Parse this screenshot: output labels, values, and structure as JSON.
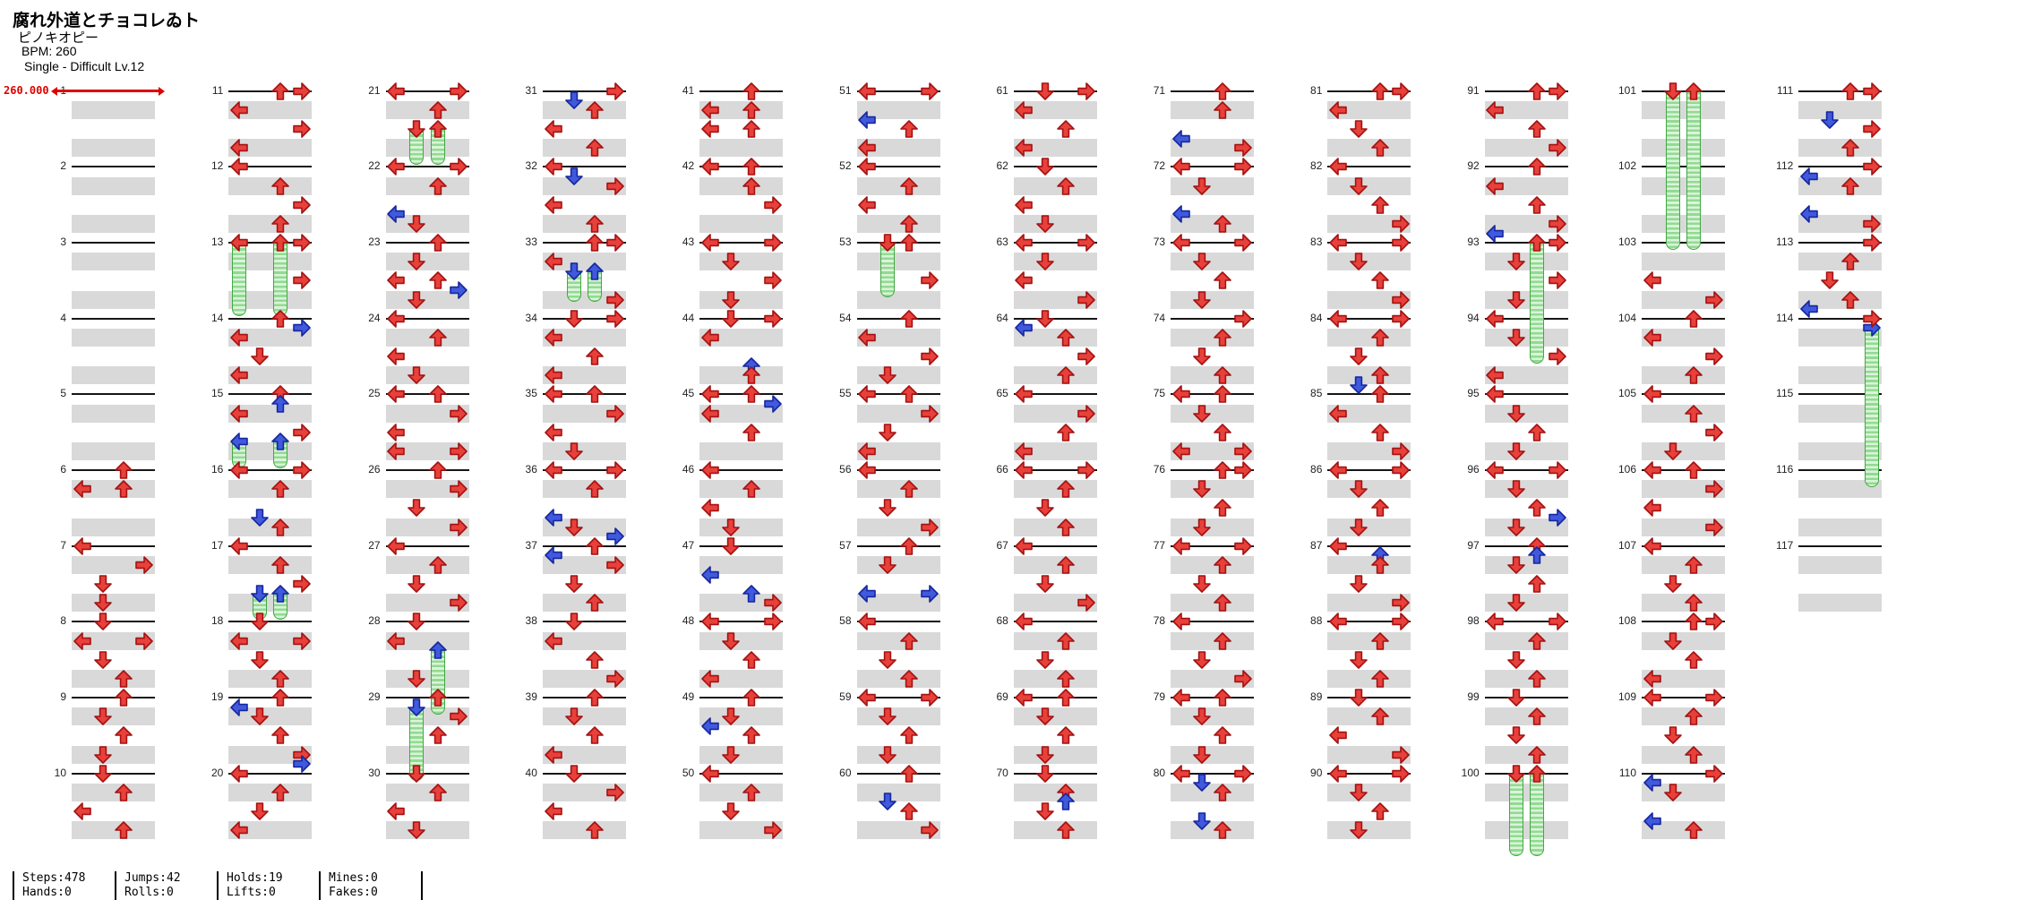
{
  "header": {
    "title": "腐れ外道とチョコレゐト",
    "artist": "ピノキオピー",
    "bpm": "BPM: 260",
    "difficulty": "Single - Difficult  Lv.12"
  },
  "tempo_marker": {
    "value": "260.000",
    "color": "#e00000"
  },
  "stats": {
    "pairs": [
      [
        "Steps:478",
        "Hands:0"
      ],
      [
        "Jumps:42",
        "Rolls:0"
      ],
      [
        "Holds:19",
        "Lifts:0"
      ],
      [
        "Mines:0",
        "Fakes:0"
      ]
    ]
  },
  "chart_meta": {
    "lanes": [
      "left",
      "down",
      "up",
      "right"
    ],
    "measures_per_column": 10,
    "columns": 12,
    "total_measures": 117,
    "note_colors": {
      "quarter": "#e8403a",
      "quarter_stroke": "#a31212",
      "eighth": "#4059dd",
      "eighth_stroke": "#16279d",
      "hold": "#92da92"
    }
  },
  "measures": [
    {
      "n": 1,
      "s": "",
      "h": []
    },
    {
      "n": 2,
      "s": "",
      "h": []
    },
    {
      "n": 3,
      "s": "",
      "h": []
    },
    {
      "n": 4,
      "s": "",
      "h": []
    },
    {
      "n": 5,
      "s": "",
      "h": []
    },
    {
      "n": 6,
      "s": "0U 1L 1U",
      "h": []
    },
    {
      "n": 7,
      "s": "0L 1R 2D 3D",
      "h": []
    },
    {
      "n": 8,
      "s": "0D 1L 1R 2D 3U",
      "h": []
    },
    {
      "n": 9,
      "s": "0U 1D 2U 3D",
      "h": []
    },
    {
      "n": 10,
      "s": "0D 1U 2L 3U",
      "h": []
    },
    {
      "n": 11,
      "s": "0U 0R 1L 2R 3L",
      "h": []
    },
    {
      "n": 12,
      "s": "0L 1U 2R 3U",
      "h": []
    },
    {
      "n": 13,
      "s": "0R 2R",
      "h": [
        [
          0,
          0,
          3.5
        ],
        [
          0,
          2,
          3.5
        ]
      ]
    },
    {
      "n": 14,
      "s": "0U 0.5r 1L 2D 3L",
      "h": []
    },
    {
      "n": 15,
      "s": "0U 0.5u 1L 2R",
      "h": [
        [
          2.5,
          0,
          1
        ],
        [
          2.5,
          2,
          1
        ]
      ]
    },
    {
      "n": 16,
      "s": "0L 0R 1U 2.5d 3U",
      "h": []
    },
    {
      "n": 17,
      "s": "0L 1U 2R",
      "h": [
        [
          2.5,
          1,
          1
        ],
        [
          2.5,
          2,
          1
        ]
      ]
    },
    {
      "n": 18,
      "s": "0D 1L 1R 2D 3U",
      "h": []
    },
    {
      "n": 19,
      "s": "0U 0.5l 1D 2U 3R 3.5r",
      "h": []
    },
    {
      "n": 20,
      "s": "0L 1U 2D 3L",
      "h": []
    },
    {
      "n": 21,
      "s": "0L 0R 1U",
      "h": [
        [
          2,
          1,
          1.5
        ],
        [
          2,
          2,
          1.5
        ]
      ]
    },
    {
      "n": 22,
      "s": "0L 0R 1U 2.5l 3D",
      "h": []
    },
    {
      "n": 23,
      "s": "0U 1D 2L 2U 2.5r 3D",
      "h": []
    },
    {
      "n": 24,
      "s": "0L 1U 2L 3D",
      "h": []
    },
    {
      "n": 25,
      "s": "0L 0U 1R 2L 3L 3R",
      "h": []
    },
    {
      "n": 26,
      "s": "0U 1R 2D 3R",
      "h": []
    },
    {
      "n": 27,
      "s": "0L 1U 2D 3R",
      "h": []
    },
    {
      "n": 28,
      "s": "0D 1L 3D",
      "h": [
        [
          1.5,
          2,
          3
        ]
      ]
    },
    {
      "n": 29,
      "s": "0U 1R 2U",
      "h": [
        [
          0.5,
          1,
          3.5
        ]
      ]
    },
    {
      "n": 30,
      "s": "0D 1U 2L 3D",
      "h": []
    },
    {
      "n": 31,
      "s": "0R 0.5d 1U 2L 3U",
      "h": []
    },
    {
      "n": 32,
      "s": "0L 0.5d 1R 2L 3U",
      "h": []
    },
    {
      "n": 33,
      "s": "0U 0R 1L 3R",
      "h": [
        [
          1.5,
          1,
          1.25
        ],
        [
          1.5,
          2,
          1.25
        ]
      ]
    },
    {
      "n": 34,
      "s": "0D 0R 1L 2U 3L",
      "h": []
    },
    {
      "n": 35,
      "s": "0L 0U 1R 2L 3D",
      "h": []
    },
    {
      "n": 36,
      "s": "0L 0R 1U 2.5l 3D 3.5r",
      "h": []
    },
    {
      "n": 37,
      "s": "0U 0.5l 1R 2D 3U",
      "h": []
    },
    {
      "n": 38,
      "s": "0D 1L 2U 3R",
      "h": []
    },
    {
      "n": 39,
      "s": "0U 1D 2U 3L",
      "h": []
    },
    {
      "n": 40,
      "s": "0D 1R 2L 3U",
      "h": []
    },
    {
      "n": 41,
      "s": "0U 1L 1U 2L 2U",
      "h": []
    },
    {
      "n": 42,
      "s": "0L 0U 1U 2R",
      "h": []
    },
    {
      "n": 43,
      "s": "0L 0R 1D 2R 3D",
      "h": []
    },
    {
      "n": 44,
      "s": "0D 0R 1L 2.5u 3U",
      "h": []
    },
    {
      "n": 45,
      "s": "0L 0U 0.5r 1L 2U",
      "h": []
    },
    {
      "n": 46,
      "s": "0L 1U 2L 3D",
      "h": []
    },
    {
      "n": 47,
      "s": "0D 1.5l 2.5u 3R",
      "h": []
    },
    {
      "n": 48,
      "s": "0L 0R 1D 2U 3L",
      "h": []
    },
    {
      "n": 49,
      "s": "0U 1D 1.5l 2U 3D",
      "h": []
    },
    {
      "n": 50,
      "s": "0L 1U 2D 3R",
      "h": []
    },
    {
      "n": 51,
      "s": "0L 0R 1.5l 2U 3L",
      "h": []
    },
    {
      "n": 52,
      "s": "0L 1U 2L 3U",
      "h": []
    },
    {
      "n": 53,
      "s": "0U 2R",
      "h": [
        [
          0,
          1,
          2.5
        ]
      ]
    },
    {
      "n": 54,
      "s": "0U 1L 2R 3D",
      "h": []
    },
    {
      "n": 55,
      "s": "0L 0U 1R 2D 3L",
      "h": []
    },
    {
      "n": 56,
      "s": "0L 1U 2D 3R",
      "h": []
    },
    {
      "n": 57,
      "s": "0U 1D 2.5l 2.5r",
      "h": []
    },
    {
      "n": 58,
      "s": "0L 1U 2D 3U",
      "h": []
    },
    {
      "n": 59,
      "s": "0L 0R 1D 2U 3D",
      "h": []
    },
    {
      "n": 60,
      "s": "0U 1.5d 2U 3R",
      "h": []
    },
    {
      "n": 61,
      "s": "0D 0R 1L 2U 3L",
      "h": []
    },
    {
      "n": 62,
      "s": "0D 1U 2L 3D",
      "h": []
    },
    {
      "n": 63,
      "s": "0L 0R 1D 2L 3R",
      "h": []
    },
    {
      "n": 64,
      "s": "0D 0.5l 1U 2R 3U",
      "h": []
    },
    {
      "n": 65,
      "s": "0L 1R 2U 3L",
      "h": []
    },
    {
      "n": 66,
      "s": "0L 0R 1U 2D 3U",
      "h": []
    },
    {
      "n": 67,
      "s": "0L 1U 2D 3R",
      "h": []
    },
    {
      "n": 68,
      "s": "0L 1U 2D 3U",
      "h": []
    },
    {
      "n": 69,
      "s": "0L 0U 1D 2U 3D",
      "h": []
    },
    {
      "n": 70,
      "s": "0D 1U 1.5u 2D 3U",
      "h": []
    },
    {
      "n": 71,
      "s": "0U 1U 2.5l 3R",
      "h": []
    },
    {
      "n": 72,
      "s": "0L 0R 1D 2.5l 3U",
      "h": []
    },
    {
      "n": 73,
      "s": "0L 0R 1D 2U 3D",
      "h": []
    },
    {
      "n": 74,
      "s": "0R 1U 2D 3U",
      "h": []
    },
    {
      "n": 75,
      "s": "0L 0U 1D 2U 3L 3R",
      "h": []
    },
    {
      "n": 76,
      "s": "0U 0R 1D 2U 3D",
      "h": []
    },
    {
      "n": 77,
      "s": "0L 0R 1U 2D 3U",
      "h": []
    },
    {
      "n": 78,
      "s": "0L 1U 2D 3R",
      "h": []
    },
    {
      "n": 79,
      "s": "0L 0U 1D 2U 3D",
      "h": []
    },
    {
      "n": 80,
      "s": "0L 0R 0.5d 1U 2.5d 3U",
      "h": []
    },
    {
      "n": 81,
      "s": "0U 0R 1L 2D 3U",
      "h": []
    },
    {
      "n": 82,
      "s": "0L 1D 2U 3R",
      "h": []
    },
    {
      "n": 83,
      "s": "0L 0R 1D 2U 3R",
      "h": []
    },
    {
      "n": 84,
      "s": "0L 0R 1U 2D 3U 3.5d",
      "h": []
    },
    {
      "n": 85,
      "s": "0U 1L 2U 3R",
      "h": []
    },
    {
      "n": 86,
      "s": "0L 0R 1D 2U 3D",
      "h": []
    },
    {
      "n": 87,
      "s": "0L 0.5u 1U 2D 3R",
      "h": []
    },
    {
      "n": 88,
      "s": "0L 0R 1U 2D 3U",
      "h": []
    },
    {
      "n": 89,
      "s": "0D 1U 2L 3R",
      "h": []
    },
    {
      "n": 90,
      "s": "0L 0R 1D 2U 3D",
      "h": []
    },
    {
      "n": 91,
      "s": "0U 0R 1L 2U 3R",
      "h": []
    },
    {
      "n": 92,
      "s": "0U 1L 2U 3R 3.5l",
      "h": []
    },
    {
      "n": 93,
      "s": "0R 1D 2R 3D",
      "h": [
        [
          0,
          2,
          6
        ]
      ]
    },
    {
      "n": 94,
      "s": "0L 1D 2R 3L",
      "h": []
    },
    {
      "n": 95,
      "s": "0L 1D 2U 3D",
      "h": []
    },
    {
      "n": 96,
      "s": "0L 0R 1D 2U 2.5r 3D",
      "h": []
    },
    {
      "n": 97,
      "s": "0U 0.5u 1D 2U 3D",
      "h": []
    },
    {
      "n": 98,
      "s": "0L 0R 1U 2D 3U",
      "h": []
    },
    {
      "n": 99,
      "s": "0D 1U 2D 3U",
      "h": []
    },
    {
      "n": 100,
      "s": "",
      "h": [
        [
          0,
          1,
          4
        ],
        [
          0,
          2,
          4
        ]
      ]
    },
    {
      "n": 101,
      "s": "",
      "h": [
        [
          0,
          1,
          8
        ],
        [
          0,
          2,
          8
        ]
      ]
    },
    {
      "n": 102,
      "s": "",
      "h": []
    },
    {
      "n": 103,
      "s": "2L 3R",
      "h": []
    },
    {
      "n": 104,
      "s": "0U 1L 2R 3U",
      "h": []
    },
    {
      "n": 105,
      "s": "0L 1U 2R 3D",
      "h": []
    },
    {
      "n": 106,
      "s": "0L 0U 1R 2L 3R",
      "h": []
    },
    {
      "n": 107,
      "s": "0L 1U 2D 3U",
      "h": []
    },
    {
      "n": 108,
      "s": "0U 0R 1D 2U 3L",
      "h": []
    },
    {
      "n": 109,
      "s": "0L 0R 1U 2D 3U",
      "h": []
    },
    {
      "n": 110,
      "s": "0R 0.5l 1D 2.5l 3U",
      "h": []
    },
    {
      "n": 111,
      "s": "0U 0R 1.5d 2R 3U",
      "h": []
    },
    {
      "n": 112,
      "s": "0R 0.5l 1U 2.5l 3R",
      "h": []
    },
    {
      "n": 113,
      "s": "0R 1U 2D 3U 3.5l",
      "h": []
    },
    {
      "n": 114,
      "s": "0R",
      "h": [
        [
          0.5,
          3,
          8
        ]
      ]
    },
    {
      "n": 115,
      "s": "",
      "h": []
    },
    {
      "n": 116,
      "s": "",
      "h": []
    },
    {
      "n": 117,
      "s": "",
      "h": []
    }
  ]
}
